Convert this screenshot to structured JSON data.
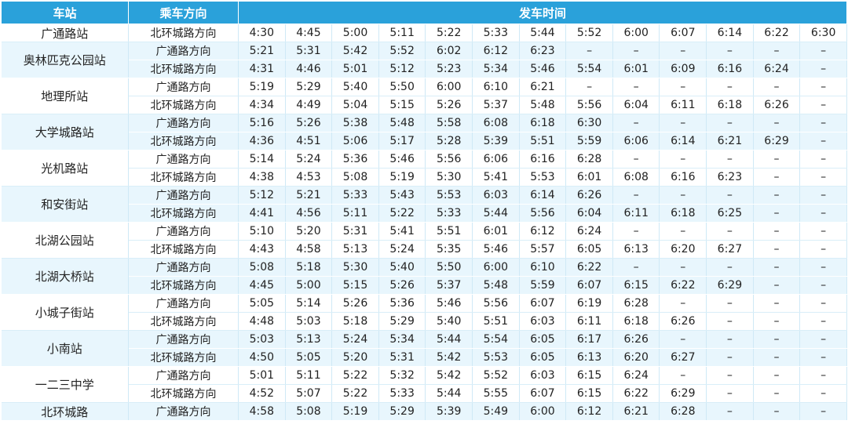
{
  "table": {
    "header": [
      "车站",
      "乘车方向",
      "发车时间"
    ],
    "stations": [
      {
        "name": "广通路站",
        "rows": [
          {
            "direction": "北环城路方向",
            "times": [
              "4:30",
              "4:45",
              "5:00",
              "5:11",
              "5:22",
              "5:33",
              "5:44",
              "5:52",
              "6:00",
              "6:07",
              "6:14",
              "6:22",
              "6:30"
            ]
          }
        ]
      },
      {
        "name": "奥林匹克公园站",
        "rows": [
          {
            "direction": "广通路方向",
            "times": [
              "5:21",
              "5:31",
              "5:42",
              "5:52",
              "6:02",
              "6:12",
              "6:23",
              "–",
              "–",
              "–",
              "–",
              "–",
              "–"
            ]
          },
          {
            "direction": "北环城路方向",
            "times": [
              "4:31",
              "4:46",
              "5:01",
              "5:12",
              "5:23",
              "5:34",
              "5:46",
              "5:54",
              "6:01",
              "6:09",
              "6:16",
              "6:24",
              "–"
            ]
          }
        ]
      },
      {
        "name": "地理所站",
        "rows": [
          {
            "direction": "广通路方向",
            "times": [
              "5:19",
              "5:29",
              "5:40",
              "5:50",
              "6:00",
              "6:10",
              "6:21",
              "–",
              "–",
              "–",
              "–",
              "–",
              "–"
            ]
          },
          {
            "direction": "北环城路方向",
            "times": [
              "4:34",
              "4:49",
              "5:04",
              "5:15",
              "5:26",
              "5:37",
              "5:48",
              "5:56",
              "6:04",
              "6:11",
              "6:18",
              "6:26",
              "–"
            ]
          }
        ]
      },
      {
        "name": "大学城路站",
        "rows": [
          {
            "direction": "广通路方向",
            "times": [
              "5:16",
              "5:26",
              "5:38",
              "5:48",
              "5:58",
              "6:08",
              "6:18",
              "6:30",
              "–",
              "–",
              "–",
              "–",
              "–"
            ]
          },
          {
            "direction": "北环城路方向",
            "times": [
              "4:36",
              "4:51",
              "5:06",
              "5:17",
              "5:28",
              "5:39",
              "5:51",
              "5:59",
              "6:06",
              "6:14",
              "6:21",
              "6:29",
              "–"
            ]
          }
        ]
      },
      {
        "name": "光机路站",
        "rows": [
          {
            "direction": "广通路方向",
            "times": [
              "5:14",
              "5:24",
              "5:36",
              "5:46",
              "5:56",
              "6:06",
              "6:16",
              "6:28",
              "–",
              "–",
              "–",
              "–",
              "–"
            ]
          },
          {
            "direction": "北环城路方向",
            "times": [
              "4:38",
              "4:53",
              "5:08",
              "5:19",
              "5:30",
              "5:41",
              "5:53",
              "6:01",
              "6:08",
              "6:16",
              "6:23",
              "–",
              "–"
            ]
          }
        ]
      },
      {
        "name": "和安街站",
        "rows": [
          {
            "direction": "广通路方向",
            "times": [
              "5:12",
              "5:21",
              "5:33",
              "5:43",
              "5:53",
              "6:03",
              "6:14",
              "6:26",
              "–",
              "–",
              "–",
              "–",
              "–"
            ]
          },
          {
            "direction": "北环城路方向",
            "times": [
              "4:41",
              "4:56",
              "5:11",
              "5:22",
              "5:33",
              "5:44",
              "5:56",
              "6:04",
              "6:11",
              "6:18",
              "6:25",
              "–",
              "–"
            ]
          }
        ]
      },
      {
        "name": "北湖公园站",
        "rows": [
          {
            "direction": "广通路方向",
            "times": [
              "5:10",
              "5:20",
              "5:31",
              "5:41",
              "5:51",
              "6:01",
              "6:12",
              "6:24",
              "–",
              "–",
              "–",
              "–",
              "–"
            ]
          },
          {
            "direction": "北环城路方向",
            "times": [
              "4:43",
              "4:58",
              "5:13",
              "5:24",
              "5:35",
              "5:46",
              "5:57",
              "6:05",
              "6:13",
              "6:20",
              "6:27",
              "–",
              "–"
            ]
          }
        ]
      },
      {
        "name": "北湖大桥站",
        "rows": [
          {
            "direction": "广通路方向",
            "times": [
              "5:08",
              "5:18",
              "5:30",
              "5:40",
              "5:50",
              "6:00",
              "6:10",
              "6:22",
              "–",
              "–",
              "–",
              "–",
              "–"
            ]
          },
          {
            "direction": "北环城路方向",
            "times": [
              "4:45",
              "5:00",
              "5:15",
              "5:26",
              "5:37",
              "5:48",
              "5:59",
              "6:07",
              "6:15",
              "6:22",
              "6:29",
              "–",
              "–"
            ]
          }
        ]
      },
      {
        "name": "小城子街站",
        "rows": [
          {
            "direction": "广通路方向",
            "times": [
              "5:05",
              "5:14",
              "5:26",
              "5:36",
              "5:46",
              "5:56",
              "6:07",
              "6:19",
              "6:28",
              "–",
              "–",
              "–",
              "–"
            ]
          },
          {
            "direction": "北环城路方向",
            "times": [
              "4:48",
              "5:03",
              "5:18",
              "5:29",
              "5:40",
              "5:51",
              "6:03",
              "6:11",
              "6:18",
              "6:26",
              "–",
              "–",
              "–"
            ]
          }
        ]
      },
      {
        "name": "小南站",
        "rows": [
          {
            "direction": "广通路方向",
            "times": [
              "5:03",
              "5:13",
              "5:24",
              "5:34",
              "5:44",
              "5:54",
              "6:05",
              "6:17",
              "6:26",
              "–",
              "–",
              "–",
              "–"
            ]
          },
          {
            "direction": "北环城路方向",
            "times": [
              "4:50",
              "5:05",
              "5:20",
              "5:31",
              "5:42",
              "5:53",
              "6:05",
              "6:13",
              "6:20",
              "6:27",
              "–",
              "–",
              "–"
            ]
          }
        ]
      },
      {
        "name": "一二三中学",
        "rows": [
          {
            "direction": "广通路方向",
            "times": [
              "5:01",
              "5:11",
              "5:22",
              "5:32",
              "5:42",
              "5:52",
              "6:03",
              "6:15",
              "6:24",
              "–",
              "–",
              "–",
              "–"
            ]
          },
          {
            "direction": "北环城路方向",
            "times": [
              "4:52",
              "5:07",
              "5:22",
              "5:33",
              "5:44",
              "5:55",
              "6:07",
              "6:15",
              "6:22",
              "6:29",
              "–",
              "–",
              "–"
            ]
          }
        ]
      },
      {
        "name": "北环城路",
        "rows": [
          {
            "direction": "广通路方向",
            "times": [
              "4:58",
              "5:08",
              "5:19",
              "5:29",
              "5:39",
              "5:49",
              "6:00",
              "6:12",
              "6:21",
              "6:28",
              "–",
              "–",
              "–"
            ]
          }
        ]
      }
    ]
  }
}
